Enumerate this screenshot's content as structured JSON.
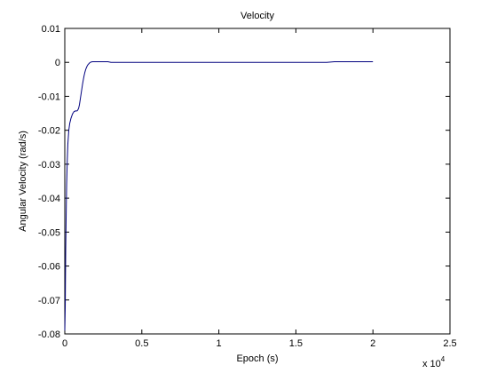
{
  "chart_data": {
    "type": "line",
    "title": "Velocity",
    "xlabel": "Epoch (s)",
    "ylabel": "Angular Velocity (rad/s)",
    "x_multiplier_label": "x 10",
    "x_multiplier_exponent": "4",
    "xlim": [
      0,
      25000
    ],
    "ylim": [
      -0.08,
      0.01
    ],
    "x_ticks": [
      0,
      5000,
      10000,
      15000,
      20000,
      25000
    ],
    "x_tick_labels": [
      "0",
      "0.5",
      "1",
      "1.5",
      "2",
      "2.5"
    ],
    "y_ticks": [
      0.01,
      0,
      -0.01,
      -0.02,
      -0.03,
      -0.04,
      -0.05,
      -0.06,
      -0.07,
      -0.08
    ],
    "y_tick_labels": [
      "0.01",
      "0",
      "-0.01",
      "-0.02",
      "-0.03",
      "-0.04",
      "-0.05",
      "-0.06",
      "-0.07",
      "-0.08"
    ],
    "grid": false,
    "series": [
      {
        "color": "#00007f",
        "x": [
          0,
          30,
          60,
          90,
          120,
          160,
          200,
          260,
          320,
          400,
          500,
          600,
          700,
          800,
          850,
          900,
          950,
          1000,
          1050,
          1100,
          1150,
          1200,
          1250,
          1300,
          1350,
          1400,
          1450,
          1500,
          1600,
          1700,
          1800,
          1900,
          2000,
          2200,
          2400,
          2600,
          2800,
          3000,
          5000,
          8000,
          12000,
          15000,
          17000,
          17500,
          18000,
          20000
        ],
        "y": [
          -0.079,
          -0.072,
          -0.055,
          -0.045,
          -0.036,
          -0.029,
          -0.024,
          -0.02,
          -0.018,
          -0.0165,
          -0.0152,
          -0.0145,
          -0.0143,
          -0.0143,
          -0.014,
          -0.0135,
          -0.0125,
          -0.011,
          -0.0095,
          -0.008,
          -0.0065,
          -0.0052,
          -0.004,
          -0.003,
          -0.0022,
          -0.0016,
          -0.0011,
          -0.0007,
          -0.0002,
          0.0001,
          0.0002,
          0.0002,
          0.0002,
          0.0002,
          0.0002,
          0.0002,
          0.0002,
          0.0,
          0.0,
          0.0,
          0.0,
          0.0,
          0.0,
          0.0002,
          0.0002,
          0.0002
        ]
      }
    ]
  }
}
